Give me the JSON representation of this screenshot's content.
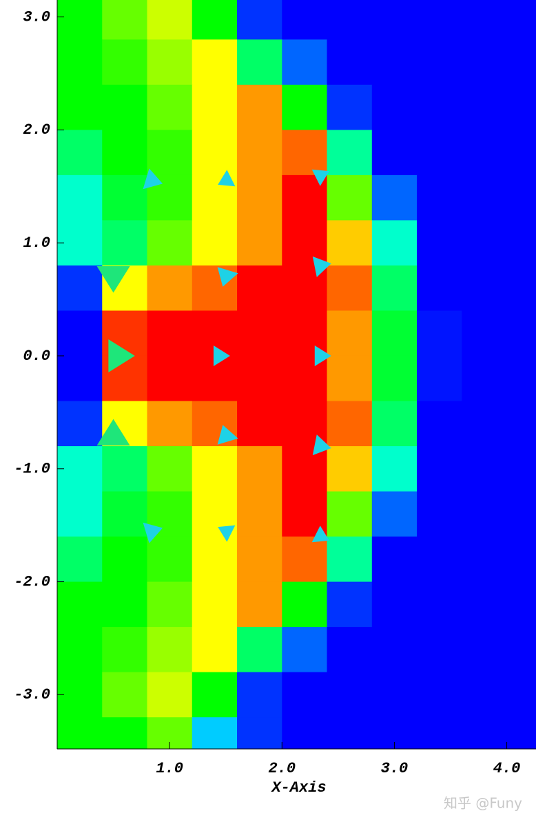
{
  "chart_data": {
    "type": "heatmap",
    "xlabel": "X-Axis",
    "watermark": "知乎 @Funy",
    "xlim": [
      0,
      4.26
    ],
    "ylim": [
      -3.48,
      3.15
    ],
    "xticks": [
      {
        "value": 1,
        "label": "1.0"
      },
      {
        "value": 2,
        "label": "2.0"
      },
      {
        "value": 3,
        "label": "3.0"
      },
      {
        "value": 4,
        "label": "4.0"
      }
    ],
    "yticks": [
      {
        "value": 3,
        "label": "3.0"
      },
      {
        "value": 2,
        "label": "2.0"
      },
      {
        "value": 1,
        "label": "1.0"
      },
      {
        "value": 0,
        "label": "0.0"
      },
      {
        "value": -1,
        "label": "-1.0"
      },
      {
        "value": -2,
        "label": "-2.0"
      },
      {
        "value": -3,
        "label": "-3.0"
      }
    ],
    "colorscale": [
      "#0000ff",
      "#00ffff",
      "#00ff00",
      "#ffff00",
      "#ff0000"
    ],
    "field": {
      "x": [
        0.2,
        0.6,
        1.0,
        1.4,
        1.8,
        2.2,
        2.6,
        3.0,
        3.4,
        3.8,
        4.2
      ],
      "y": [
        3.0,
        2.6,
        2.2,
        1.8,
        1.4,
        1.0,
        0.6,
        0.2,
        -0.2,
        -0.6,
        -1.0,
        -1.4,
        -1.8,
        -2.2,
        -2.6,
        -3.0,
        -3.4
      ],
      "values": [
        [
          0.5,
          0.6,
          0.7,
          0.5,
          0.05,
          0,
          0,
          0,
          0,
          0,
          0
        ],
        [
          0.5,
          0.55,
          0.65,
          0.75,
          0.4,
          0.1,
          0,
          0,
          0,
          0,
          0
        ],
        [
          0.5,
          0.5,
          0.6,
          0.75,
          0.85,
          0.5,
          0.05,
          0,
          0,
          0,
          0
        ],
        [
          0.4,
          0.5,
          0.55,
          0.75,
          0.85,
          0.9,
          0.35,
          0,
          0,
          0,
          0
        ],
        [
          0.3,
          0.45,
          0.55,
          0.75,
          0.85,
          1,
          0.6,
          0.1,
          0,
          0,
          0
        ],
        [
          0.3,
          0.4,
          0.6,
          0.75,
          0.85,
          1,
          0.8,
          0.3,
          0,
          0,
          0
        ],
        [
          0.05,
          0.75,
          0.85,
          0.9,
          1,
          1,
          0.9,
          0.4,
          0,
          0,
          0
        ],
        [
          0,
          0.95,
          1,
          1,
          1,
          1,
          0.85,
          0.45,
          0.02,
          0,
          0
        ],
        [
          0,
          0.95,
          1,
          1,
          1,
          1,
          0.85,
          0.45,
          0.02,
          0,
          0
        ],
        [
          0.05,
          0.75,
          0.85,
          0.9,
          1,
          1,
          0.9,
          0.4,
          0,
          0,
          0
        ],
        [
          0.3,
          0.4,
          0.6,
          0.75,
          0.85,
          1,
          0.8,
          0.3,
          0,
          0,
          0
        ],
        [
          0.3,
          0.45,
          0.55,
          0.75,
          0.85,
          1,
          0.6,
          0.1,
          0,
          0,
          0
        ],
        [
          0.4,
          0.5,
          0.55,
          0.75,
          0.85,
          0.9,
          0.35,
          0,
          0,
          0,
          0
        ],
        [
          0.5,
          0.5,
          0.6,
          0.75,
          0.85,
          0.5,
          0.05,
          0,
          0,
          0,
          0
        ],
        [
          0.5,
          0.55,
          0.65,
          0.75,
          0.4,
          0.1,
          0,
          0,
          0,
          0,
          0
        ],
        [
          0.5,
          0.6,
          0.7,
          0.5,
          0.05,
          0,
          0,
          0,
          0,
          0,
          0
        ],
        [
          0.5,
          0.5,
          0.6,
          0.2,
          0.05,
          0,
          0,
          0,
          0,
          0,
          0
        ]
      ]
    },
    "vectors": {
      "x": [
        0.5,
        0.55,
        0.5,
        1.45,
        2.35,
        1.5,
        1.5,
        2.35,
        2.35,
        1.5,
        1.5,
        0.85,
        0.85,
        2.35,
        2.35
      ],
      "y": [
        0.7,
        0,
        -0.7,
        0,
        0,
        0.7,
        -0.7,
        0.8,
        -0.8,
        1.55,
        -1.55,
        1.55,
        -1.55,
        1.6,
        -1.6
      ],
      "u": [
        0,
        1.6,
        0,
        1,
        1,
        -0.3,
        -0.3,
        1,
        1,
        -0.8,
        -0.8,
        1,
        1,
        0.8,
        0.8
      ],
      "v": [
        -1.6,
        0,
        1.6,
        0,
        0,
        -1,
        1,
        0.2,
        -0.2,
        -0.4,
        0.4,
        -0.3,
        0.3,
        0.4,
        -0.4
      ],
      "colors": [
        "#1ee67a",
        "#1ee67a",
        "#1ee67a",
        "#1ed2e6",
        "#1ed2e6",
        "#1ed2e6",
        "#1ed2e6",
        "#1ed2e6",
        "#1ed2e6",
        "#1ed2e6",
        "#1ed2e6",
        "#1ed2e6",
        "#1ed2e6",
        "#1ed2e6",
        "#1ed2e6"
      ]
    }
  }
}
